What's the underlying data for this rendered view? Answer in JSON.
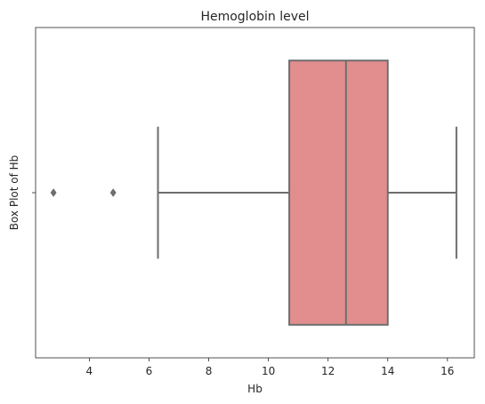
{
  "chart_data": {
    "type": "box",
    "title": "Hemoglobin level",
    "xlabel": "Hb",
    "ylabel": "Box Plot of Hb",
    "xlim": [
      2.2,
      16.9
    ],
    "xticks": [
      4,
      6,
      8,
      10,
      12,
      14,
      16
    ],
    "grid": false,
    "series": [
      {
        "whisker_low": 6.3,
        "q1": 10.7,
        "median": 12.6,
        "q3": 14.0,
        "whisker_high": 16.3,
        "outliers": [
          2.8,
          4.8
        ]
      }
    ],
    "colors": {
      "box_fill": "#e28e8e",
      "line": "#6e6e6e",
      "axis": "#262626"
    }
  }
}
